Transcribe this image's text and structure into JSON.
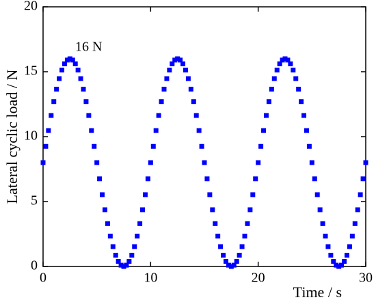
{
  "chart_data": {
    "type": "scatter",
    "xlabel": "Time / s",
    "ylabel": "Lateral cyclic load / N",
    "annotation": "16 N",
    "xlim": [
      0,
      30
    ],
    "xticks": [
      0,
      10,
      20,
      30
    ],
    "ylim": [
      0,
      20
    ],
    "yticks": [
      0,
      5,
      10,
      15,
      20
    ],
    "color": "#0000ff",
    "x": [
      0,
      0.25,
      0.5,
      0.75,
      1,
      1.25,
      1.5,
      1.75,
      2,
      2.25,
      2.5,
      2.75,
      3,
      3.25,
      3.5,
      3.75,
      4,
      4.25,
      4.5,
      4.75,
      5,
      5.25,
      5.5,
      5.75,
      6,
      6.25,
      6.5,
      6.75,
      7,
      7.25,
      7.5,
      7.75,
      8,
      8.25,
      8.5,
      8.75,
      9,
      9.25,
      9.5,
      9.75,
      10,
      10.25,
      10.5,
      10.75,
      11,
      11.25,
      11.5,
      11.75,
      12,
      12.25,
      12.5,
      12.75,
      13,
      13.25,
      13.5,
      13.75,
      14,
      14.25,
      14.5,
      14.75,
      15,
      15.25,
      15.5,
      15.75,
      16,
      16.25,
      16.5,
      16.75,
      17,
      17.25,
      17.5,
      17.75,
      18,
      18.25,
      18.5,
      18.75,
      19,
      19.25,
      19.5,
      19.75,
      20,
      20.25,
      20.5,
      20.75,
      21,
      21.25,
      21.5,
      21.75,
      22,
      22.25,
      22.5,
      22.75,
      23,
      23.25,
      23.5,
      23.75,
      24,
      24.25,
      24.5,
      24.75,
      25,
      25.25,
      25.5,
      25.75,
      26,
      26.25,
      26.5,
      26.75,
      27,
      27.25,
      27.5,
      27.75,
      28,
      28.25,
      28.5,
      28.75,
      29,
      29.25,
      29.5,
      29.75,
      30
    ],
    "values": [
      8,
      9.25,
      10.47,
      11.63,
      12.7,
      13.66,
      14.47,
      15.13,
      15.61,
      15.9,
      16,
      15.9,
      15.61,
      15.13,
      14.47,
      13.66,
      12.7,
      11.63,
      10.47,
      9.25,
      8,
      6.75,
      5.53,
      4.37,
      3.3,
      2.34,
      1.53,
      0.87,
      0.39,
      0.1,
      0,
      0.1,
      0.39,
      0.87,
      1.53,
      2.34,
      3.3,
      4.37,
      5.53,
      6.75,
      8,
      9.25,
      10.47,
      11.63,
      12.7,
      13.66,
      14.47,
      15.13,
      15.61,
      15.9,
      16,
      15.9,
      15.61,
      15.13,
      14.47,
      13.66,
      12.7,
      11.63,
      10.47,
      9.25,
      8,
      6.75,
      5.53,
      4.37,
      3.3,
      2.34,
      1.53,
      0.87,
      0.39,
      0.1,
      0,
      0.1,
      0.39,
      0.87,
      1.53,
      2.34,
      3.3,
      4.37,
      5.53,
      6.75,
      8,
      9.25,
      10.47,
      11.63,
      12.7,
      13.66,
      14.47,
      15.13,
      15.61,
      15.9,
      16,
      15.9,
      15.61,
      15.13,
      14.47,
      13.66,
      12.7,
      11.63,
      10.47,
      9.25,
      8,
      6.75,
      5.53,
      4.37,
      3.3,
      2.34,
      1.53,
      0.87,
      0.39,
      0.1,
      0,
      0.1,
      0.39,
      0.87,
      1.53,
      2.34,
      3.3,
      4.37,
      5.53,
      6.75,
      8
    ]
  }
}
